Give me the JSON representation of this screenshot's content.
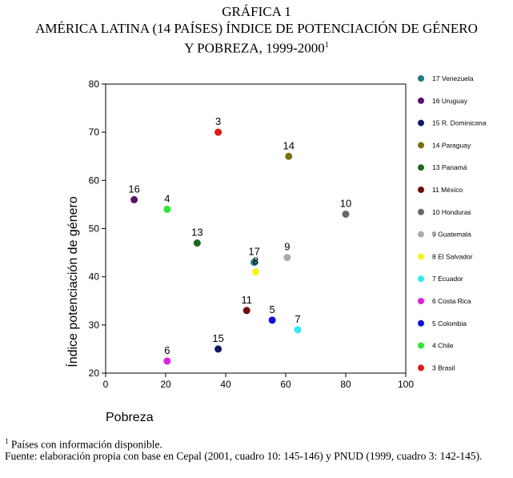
{
  "heading": {
    "label": "GRÁFICA 1",
    "line1": "AMÉRICA LATINA (14 PAÍSES) ÍNDICE DE POTENCIACIÓN DE GÉNERO",
    "line2": "Y POBREZA, 1999-2000",
    "note_marker": "1"
  },
  "chart_data": {
    "type": "scatter",
    "xlabel": "Pobreza",
    "ylabel": "Índice potenciación de género",
    "xlim": [
      0,
      100
    ],
    "ylim": [
      20,
      80
    ],
    "xticks": [
      "0",
      "20",
      "40",
      "60",
      "80",
      "100"
    ],
    "yticks": [
      "20",
      "30",
      "40",
      "50",
      "60",
      "70",
      "80"
    ],
    "legend_position": "right",
    "points": [
      {
        "id": "17",
        "country": "17 Venezuela",
        "x": 49.5,
        "y": 43,
        "color": "#1f7a85"
      },
      {
        "id": "16",
        "country": "16 Uruguay",
        "x": 9.5,
        "y": 56,
        "color": "#5a1070"
      },
      {
        "id": "15",
        "country": "15 R. Dominicana",
        "x": 37.5,
        "y": 25,
        "color": "#101868"
      },
      {
        "id": "14",
        "country": "14 Paraguay",
        "x": 61,
        "y": 65,
        "color": "#7a7010"
      },
      {
        "id": "13",
        "country": "13 Panamá",
        "x": 30.5,
        "y": 47,
        "color": "#1a6a20"
      },
      {
        "id": "11",
        "country": "11 México",
        "x": 47,
        "y": 33,
        "color": "#700c0c"
      },
      {
        "id": "10",
        "country": "10 Honduras",
        "x": 80,
        "y": 53,
        "color": "#686868"
      },
      {
        "id": "9",
        "country": "9 Guatemala",
        "x": 60.5,
        "y": 44,
        "color": "#aaaaaa"
      },
      {
        "id": "8",
        "country": "8 El Salvador",
        "x": 50,
        "y": 41,
        "color": "#f5f520"
      },
      {
        "id": "7",
        "country": "7 Ecuador",
        "x": 64,
        "y": 29,
        "color": "#30e8f0"
      },
      {
        "id": "6",
        "country": "6 Costa Rica",
        "x": 20.5,
        "y": 22.5,
        "color": "#e020e0"
      },
      {
        "id": "5",
        "country": "5 Colombia",
        "x": 55.5,
        "y": 31,
        "color": "#1010d8"
      },
      {
        "id": "4",
        "country": "4 Chile",
        "x": 20.5,
        "y": 54,
        "color": "#30e830"
      },
      {
        "id": "3",
        "country": "3 Brasil",
        "x": 37.5,
        "y": 70,
        "color": "#e01818"
      }
    ]
  },
  "footnotes": {
    "note1_marker": "1",
    "note1_text": " Países con información disponible.",
    "source": "Fuente: elaboración propia con base en Cepal (2001, cuadro 10: 145-146) y PNUD (1999, cuadro 3: 142-145)."
  }
}
